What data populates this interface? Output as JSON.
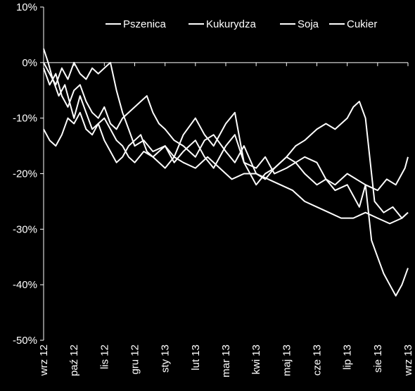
{
  "chart_data": {
    "type": "line",
    "title": "",
    "xlabel": "",
    "ylabel": "",
    "ylim": [
      -50,
      10
    ],
    "y_ticks": [
      "10%",
      "0%",
      "-10%",
      "-20%",
      "-30%",
      "-40%",
      "-50%"
    ],
    "y_tick_values": [
      10,
      0,
      -10,
      -20,
      -30,
      -40,
      -50
    ],
    "x_ticks": [
      "wrz 12",
      "paź 12",
      "lis 12",
      "gru 12",
      "sty 13",
      "lut 13",
      "mar 13",
      "kwi 13",
      "maj 13",
      "cze 13",
      "lip 13",
      "sie 13",
      "wrz 13"
    ],
    "x_tick_values": [
      0,
      1,
      2,
      3,
      4,
      5,
      6,
      7,
      8,
      9,
      10,
      11,
      12
    ],
    "legend_position": "top-right",
    "grid": false,
    "line_color": "#ffffff",
    "series": [
      {
        "name": "Pszenica",
        "x": [
          0,
          0.15,
          0.3,
          0.5,
          0.7,
          0.9,
          1.0,
          1.2,
          1.4,
          1.6,
          1.8,
          2.0,
          2.2,
          2.4,
          2.6,
          2.8,
          3.0,
          3.2,
          3.4,
          3.6,
          3.8,
          4.0,
          4.3,
          4.6,
          5.0,
          5.4,
          5.8,
          6.2,
          6.6,
          7.0,
          7.4,
          7.8,
          8.2,
          8.6,
          9.0,
          9.4,
          9.8,
          10.2,
          10.6,
          11.0,
          11.4,
          11.8,
          12.0
        ],
        "values": [
          2.5,
          0,
          -3,
          -6,
          -4,
          -8,
          -10,
          -6,
          -9,
          -12,
          -11,
          -14,
          -16,
          -18,
          -17,
          -15,
          -14,
          -13,
          -16,
          -17,
          -16,
          -15,
          -17,
          -18,
          -19,
          -17,
          -19,
          -21,
          -20,
          -20,
          -21,
          -22,
          -23,
          -25,
          -26,
          -27,
          -28,
          -28,
          -27,
          -28,
          -29,
          -28,
          -27
        ]
      },
      {
        "name": "Kukurydza",
        "x": [
          0,
          0.2,
          0.4,
          0.6,
          0.8,
          1.0,
          1.2,
          1.4,
          1.6,
          1.8,
          2.0,
          2.2,
          2.4,
          2.6,
          2.8,
          3.0,
          3.3,
          3.6,
          4.0,
          4.3,
          4.6,
          5.0,
          5.3,
          5.6,
          6.0,
          6.3,
          6.6,
          7.0,
          7.3,
          7.6,
          8.0,
          8.3,
          8.6,
          9.0,
          9.3,
          9.6,
          10.0,
          10.2,
          10.4,
          10.6,
          10.9,
          11.2,
          11.5,
          11.8,
          12.0
        ],
        "values": [
          -12,
          -14,
          -15,
          -13,
          -10,
          -11,
          -9,
          -12,
          -13,
          -11,
          -10,
          -12,
          -14,
          -15,
          -17,
          -18,
          -16,
          -17,
          -19,
          -17,
          -13,
          -10,
          -13,
          -15,
          -11,
          -9,
          -18,
          -22,
          -20,
          -19,
          -17,
          -15,
          -14,
          -12,
          -11,
          -12,
          -10,
          -8,
          -7,
          -10,
          -25,
          -27,
          -26,
          -28,
          -27
        ]
      },
      {
        "name": "Soja",
        "x": [
          0,
          0.2,
          0.4,
          0.6,
          0.8,
          1.0,
          1.2,
          1.4,
          1.6,
          1.8,
          2.0,
          2.2,
          2.4,
          2.6,
          2.8,
          3.0,
          3.2,
          3.4,
          3.6,
          3.8,
          4.0,
          4.3,
          4.6,
          5.0,
          5.3,
          5.6,
          6.0,
          6.3,
          6.6,
          7.0,
          7.3,
          7.6,
          8.0,
          8.3,
          8.6,
          9.0,
          9.3,
          9.6,
          10.0,
          10.2,
          10.4,
          10.6,
          10.8,
          11.0,
          11.2,
          11.4,
          11.6,
          11.8,
          12.0
        ],
        "values": [
          -1,
          -4,
          -2,
          -6,
          -8,
          -5,
          -4,
          -7,
          -9,
          -10,
          -8,
          -11,
          -12,
          -10,
          -9,
          -8,
          -7,
          -6,
          -9,
          -11,
          -12,
          -14,
          -15,
          -17,
          -14,
          -13,
          -16,
          -18,
          -15,
          -20,
          -21,
          -19,
          -17,
          -18,
          -20,
          -22,
          -21,
          -23,
          -22,
          -24,
          -26,
          -22,
          -32,
          -35,
          -38,
          -40,
          -42,
          -40,
          -37
        ]
      },
      {
        "name": "Cukier",
        "x": [
          0,
          0.2,
          0.4,
          0.6,
          0.8,
          1.0,
          1.2,
          1.4,
          1.6,
          1.8,
          2.0,
          2.2,
          2.4,
          2.6,
          2.8,
          3.0,
          3.3,
          3.6,
          4.0,
          4.3,
          4.6,
          5.0,
          5.3,
          5.6,
          6.0,
          6.3,
          6.6,
          7.0,
          7.3,
          7.6,
          8.0,
          8.3,
          8.6,
          9.0,
          9.3,
          9.6,
          10.0,
          10.3,
          10.6,
          11.0,
          11.3,
          11.6,
          11.9,
          12.0
        ],
        "values": [
          0,
          -2,
          -4,
          -1,
          -3,
          0,
          -2,
          -3,
          -1,
          -2,
          -1,
          0,
          -5,
          -9,
          -12,
          -15,
          -14,
          -16,
          -15,
          -18,
          -16,
          -14,
          -17,
          -19,
          -15,
          -13,
          -18,
          -19,
          -17,
          -20,
          -19,
          -18,
          -17,
          -18,
          -21,
          -22,
          -20,
          -21,
          -22,
          -23,
          -21,
          -22,
          -19,
          -17
        ]
      }
    ]
  }
}
